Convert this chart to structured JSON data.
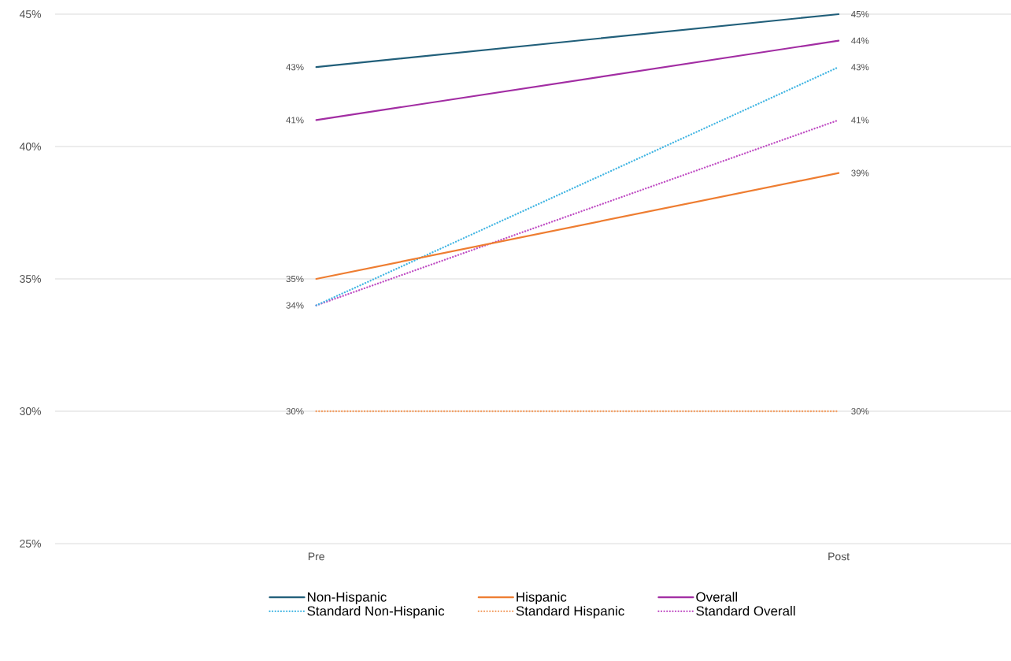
{
  "chart_data": {
    "type": "line",
    "categories": [
      "Pre",
      "Post"
    ],
    "series": [
      {
        "name": "Non-Hispanic",
        "color": "#215f7a",
        "values": [
          43,
          45
        ],
        "line_style": "solid",
        "value_labels": [
          "43%",
          "45%"
        ]
      },
      {
        "name": "Hispanic",
        "color": "#ee7d31",
        "values": [
          35,
          39
        ],
        "line_style": "solid",
        "value_labels": [
          "35%",
          "39%"
        ]
      },
      {
        "name": "Overall",
        "color": "#a22da3",
        "values": [
          41,
          44
        ],
        "line_style": "solid",
        "value_labels": [
          "41%",
          "44%"
        ]
      },
      {
        "name": "Standard Non-Hispanic",
        "color": "#44b6e3",
        "values": [
          34,
          43
        ],
        "line_style": "dotted",
        "value_labels": [
          "34%",
          "43%"
        ]
      },
      {
        "name": "Standard Hispanic",
        "color": "#f3a066",
        "values": [
          30,
          30
        ],
        "line_style": "dotted",
        "value_labels": [
          "30%",
          "30%"
        ]
      },
      {
        "name": "Standard Overall",
        "color": "#c04fc4",
        "values": [
          34,
          41
        ],
        "line_style": "dotted",
        "value_labels": [
          null,
          "41%"
        ]
      }
    ],
    "ylim": [
      25,
      45
    ],
    "yticks": [
      {
        "value": 25,
        "label": "25%"
      },
      {
        "value": 30,
        "label": "30%"
      },
      {
        "value": 35,
        "label": "35%"
      },
      {
        "value": 40,
        "label": "40%"
      },
      {
        "value": 45,
        "label": "45%"
      }
    ],
    "grid": "y",
    "legend": "bottom",
    "marker": "none"
  }
}
